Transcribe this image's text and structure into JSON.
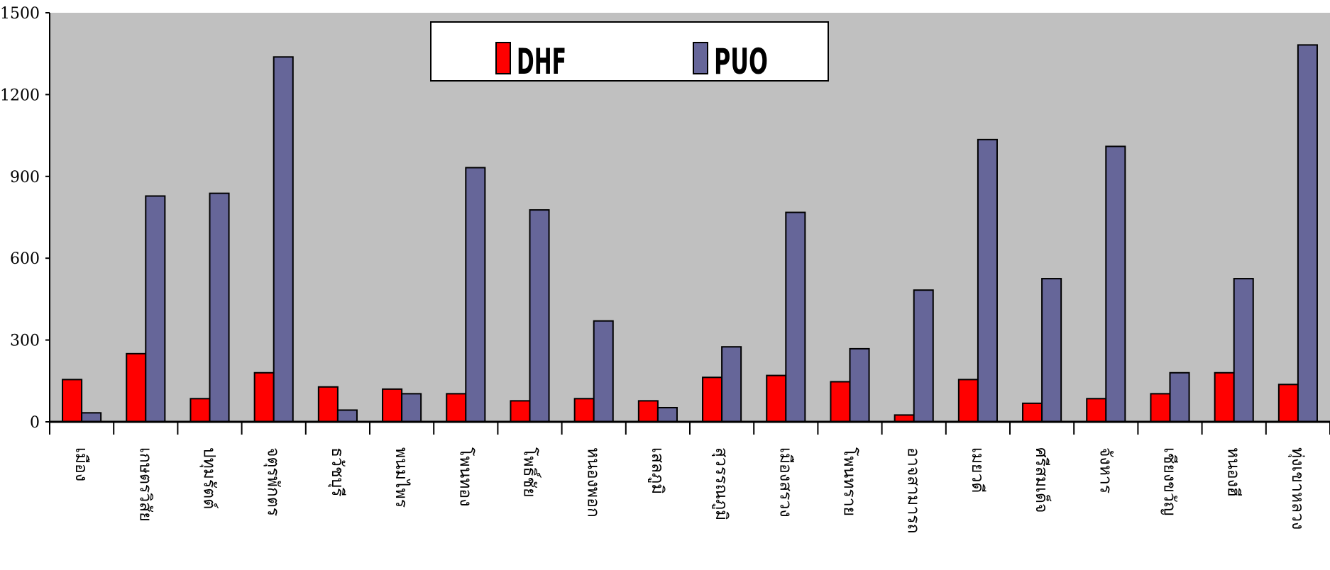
{
  "chart_data": {
    "type": "bar",
    "title": "",
    "xlabel": "",
    "ylabel": "",
    "ylim": [
      0,
      1500
    ],
    "yticks": [
      0,
      300,
      600,
      900,
      1200,
      1500
    ],
    "grid": false,
    "legend_position": "top-center",
    "plot_background": "#c0c0c0",
    "categories": [
      "เมือง",
      "เกษตรวิสัย",
      "ปทุมรัตต์",
      "จตุรพักตร",
      "ธวัชบุรี",
      "พนมไพร",
      "โพนทอง",
      "โพธิ์ชัย",
      "หนองพอก",
      "เสลภูมิ",
      "สุวรรณภูมิ",
      "เมืองสรวง",
      "โพนทราย",
      "อาจสามารถ",
      "เมยวดี",
      "ศรีสมเด็จ",
      "จังหาร",
      "เชียงขวัญ",
      "หนองฮี",
      "ทุ่งเขาหลวง"
    ],
    "series": [
      {
        "name": "DHF",
        "color": "#ff0000",
        "values": [
          155,
          250,
          85,
          180,
          128,
          120,
          103,
          77,
          85,
          77,
          163,
          170,
          147,
          25,
          155,
          68,
          85,
          103,
          180,
          137
        ]
      },
      {
        "name": "PUO",
        "color": "#666699",
        "values": [
          33,
          828,
          838,
          1338,
          43,
          103,
          932,
          777,
          370,
          52,
          275,
          768,
          268,
          483,
          1035,
          525,
          1010,
          180,
          525,
          1382
        ]
      }
    ]
  }
}
